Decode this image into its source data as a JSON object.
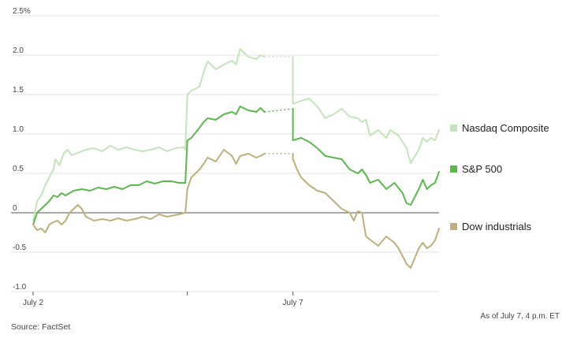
{
  "chart_data": {
    "type": "line",
    "ylim": [
      -1.0,
      2.5
    ],
    "y_ticks": [
      "2.5%",
      "2.0",
      "1.5",
      "1.0",
      "0.5",
      "0",
      "-0.5",
      "-1.0"
    ],
    "y_tick_values": [
      2.5,
      2.0,
      1.5,
      1.0,
      0.5,
      0,
      -0.5,
      -1.0
    ],
    "x_range": [
      0,
      1
    ],
    "x_ticks": [
      {
        "label": "July 2",
        "x": 0.0
      },
      {
        "label": "",
        "x": 0.38
      },
      {
        "label": "July 7",
        "x": 0.64
      }
    ],
    "grid": true,
    "legend_placement": "right",
    "series": [
      {
        "name": "Nasdaq Composite",
        "color": "#c5e3bd",
        "points": [
          [
            0.0,
            -0.1
          ],
          [
            0.01,
            0.15
          ],
          [
            0.02,
            0.22
          ],
          [
            0.03,
            0.35
          ],
          [
            0.04,
            0.45
          ],
          [
            0.05,
            0.55
          ],
          [
            0.055,
            0.68
          ],
          [
            0.065,
            0.6
          ],
          [
            0.075,
            0.75
          ],
          [
            0.085,
            0.8
          ],
          [
            0.095,
            0.73
          ],
          [
            0.11,
            0.76
          ],
          [
            0.13,
            0.8
          ],
          [
            0.15,
            0.82
          ],
          [
            0.17,
            0.78
          ],
          [
            0.19,
            0.85
          ],
          [
            0.21,
            0.8
          ],
          [
            0.23,
            0.83
          ],
          [
            0.25,
            0.8
          ],
          [
            0.27,
            0.78
          ],
          [
            0.29,
            0.8
          ],
          [
            0.31,
            0.83
          ],
          [
            0.33,
            0.78
          ],
          [
            0.35,
            0.82
          ],
          [
            0.37,
            0.83
          ],
          [
            0.375,
            0.8
          ],
          [
            0.38,
            1.5
          ],
          [
            0.39,
            1.55
          ],
          [
            0.41,
            1.6
          ],
          [
            0.42,
            1.78
          ],
          [
            0.43,
            1.92
          ],
          [
            0.45,
            1.82
          ],
          [
            0.47,
            1.88
          ],
          [
            0.49,
            1.93
          ],
          [
            0.5,
            1.88
          ],
          [
            0.51,
            2.08
          ],
          [
            0.53,
            1.98
          ],
          [
            0.55,
            1.95
          ],
          [
            0.56,
            2.0
          ],
          [
            0.57,
            1.98
          ],
          [
            0.64,
            1.98
          ],
          [
            0.64,
            1.38
          ],
          [
            0.66,
            1.42
          ],
          [
            0.68,
            1.45
          ],
          [
            0.7,
            1.35
          ],
          [
            0.72,
            1.2
          ],
          [
            0.74,
            1.25
          ],
          [
            0.76,
            1.32
          ],
          [
            0.78,
            1.22
          ],
          [
            0.8,
            1.2
          ],
          [
            0.81,
            1.15
          ],
          [
            0.82,
            1.18
          ],
          [
            0.83,
            0.98
          ],
          [
            0.85,
            1.05
          ],
          [
            0.87,
            0.95
          ],
          [
            0.88,
            1.05
          ],
          [
            0.9,
            0.98
          ],
          [
            0.92,
            0.82
          ],
          [
            0.93,
            0.63
          ],
          [
            0.95,
            0.8
          ],
          [
            0.96,
            0.95
          ],
          [
            0.97,
            0.9
          ],
          [
            0.98,
            0.95
          ],
          [
            0.99,
            0.92
          ],
          [
            1.0,
            1.05
          ]
        ]
      },
      {
        "name": "S&P 500",
        "color": "#5cb84e",
        "points": [
          [
            0.0,
            -0.15
          ],
          [
            0.01,
            0.0
          ],
          [
            0.02,
            0.05
          ],
          [
            0.03,
            0.1
          ],
          [
            0.04,
            0.15
          ],
          [
            0.05,
            0.22
          ],
          [
            0.06,
            0.2
          ],
          [
            0.07,
            0.25
          ],
          [
            0.08,
            0.22
          ],
          [
            0.1,
            0.28
          ],
          [
            0.12,
            0.3
          ],
          [
            0.14,
            0.28
          ],
          [
            0.16,
            0.32
          ],
          [
            0.18,
            0.3
          ],
          [
            0.2,
            0.33
          ],
          [
            0.22,
            0.3
          ],
          [
            0.24,
            0.35
          ],
          [
            0.26,
            0.35
          ],
          [
            0.28,
            0.4
          ],
          [
            0.3,
            0.37
          ],
          [
            0.32,
            0.4
          ],
          [
            0.34,
            0.4
          ],
          [
            0.36,
            0.38
          ],
          [
            0.375,
            0.38
          ],
          [
            0.38,
            0.92
          ],
          [
            0.39,
            0.95
          ],
          [
            0.41,
            1.08
          ],
          [
            0.42,
            1.15
          ],
          [
            0.43,
            1.2
          ],
          [
            0.45,
            1.18
          ],
          [
            0.47,
            1.25
          ],
          [
            0.49,
            1.28
          ],
          [
            0.5,
            1.25
          ],
          [
            0.51,
            1.35
          ],
          [
            0.53,
            1.3
          ],
          [
            0.55,
            1.28
          ],
          [
            0.56,
            1.33
          ],
          [
            0.57,
            1.28
          ],
          [
            0.64,
            1.32
          ],
          [
            0.64,
            0.92
          ],
          [
            0.66,
            0.95
          ],
          [
            0.68,
            0.9
          ],
          [
            0.7,
            0.82
          ],
          [
            0.72,
            0.72
          ],
          [
            0.74,
            0.7
          ],
          [
            0.76,
            0.68
          ],
          [
            0.78,
            0.55
          ],
          [
            0.8,
            0.5
          ],
          [
            0.81,
            0.55
          ],
          [
            0.82,
            0.48
          ],
          [
            0.83,
            0.38
          ],
          [
            0.85,
            0.42
          ],
          [
            0.87,
            0.3
          ],
          [
            0.89,
            0.38
          ],
          [
            0.91,
            0.25
          ],
          [
            0.92,
            0.12
          ],
          [
            0.93,
            0.1
          ],
          [
            0.95,
            0.3
          ],
          [
            0.96,
            0.42
          ],
          [
            0.97,
            0.3
          ],
          [
            0.98,
            0.35
          ],
          [
            0.99,
            0.38
          ],
          [
            1.0,
            0.52
          ]
        ]
      },
      {
        "name": "Dow industrials",
        "color": "#bdb07c",
        "points": [
          [
            0.0,
            -0.15
          ],
          [
            0.01,
            -0.22
          ],
          [
            0.02,
            -0.2
          ],
          [
            0.03,
            -0.25
          ],
          [
            0.04,
            -0.15
          ],
          [
            0.05,
            -0.12
          ],
          [
            0.06,
            -0.1
          ],
          [
            0.07,
            -0.15
          ],
          [
            0.08,
            -0.1
          ],
          [
            0.09,
            0.0
          ],
          [
            0.1,
            0.05
          ],
          [
            0.11,
            0.1
          ],
          [
            0.12,
            0.05
          ],
          [
            0.13,
            -0.05
          ],
          [
            0.15,
            -0.1
          ],
          [
            0.17,
            -0.08
          ],
          [
            0.19,
            -0.1
          ],
          [
            0.21,
            -0.07
          ],
          [
            0.23,
            -0.1
          ],
          [
            0.25,
            -0.08
          ],
          [
            0.27,
            -0.05
          ],
          [
            0.29,
            -0.08
          ],
          [
            0.31,
            -0.02
          ],
          [
            0.33,
            -0.05
          ],
          [
            0.35,
            -0.03
          ],
          [
            0.375,
            0.0
          ],
          [
            0.38,
            0.3
          ],
          [
            0.39,
            0.45
          ],
          [
            0.41,
            0.55
          ],
          [
            0.42,
            0.62
          ],
          [
            0.43,
            0.7
          ],
          [
            0.45,
            0.65
          ],
          [
            0.47,
            0.8
          ],
          [
            0.49,
            0.72
          ],
          [
            0.5,
            0.62
          ],
          [
            0.51,
            0.72
          ],
          [
            0.53,
            0.75
          ],
          [
            0.55,
            0.7
          ],
          [
            0.56,
            0.72
          ],
          [
            0.57,
            0.75
          ],
          [
            0.64,
            0.75
          ],
          [
            0.64,
            0.68
          ],
          [
            0.65,
            0.55
          ],
          [
            0.66,
            0.45
          ],
          [
            0.68,
            0.35
          ],
          [
            0.7,
            0.28
          ],
          [
            0.72,
            0.25
          ],
          [
            0.74,
            0.15
          ],
          [
            0.76,
            0.05
          ],
          [
            0.78,
            0.0
          ],
          [
            0.79,
            -0.1
          ],
          [
            0.8,
            0.02
          ],
          [
            0.81,
            0.0
          ],
          [
            0.82,
            -0.3
          ],
          [
            0.84,
            -0.38
          ],
          [
            0.85,
            -0.42
          ],
          [
            0.87,
            -0.3
          ],
          [
            0.89,
            -0.38
          ],
          [
            0.9,
            -0.45
          ],
          [
            0.91,
            -0.55
          ],
          [
            0.92,
            -0.65
          ],
          [
            0.93,
            -0.7
          ],
          [
            0.95,
            -0.45
          ],
          [
            0.96,
            -0.38
          ],
          [
            0.97,
            -0.45
          ],
          [
            0.98,
            -0.42
          ],
          [
            0.99,
            -0.35
          ],
          [
            1.0,
            -0.2
          ]
        ]
      }
    ],
    "gap_segments": [
      [
        0.57,
        0.64
      ]
    ]
  },
  "source": "Source: FactSet",
  "as_of": "As of July 7, 4 p.m. ET"
}
